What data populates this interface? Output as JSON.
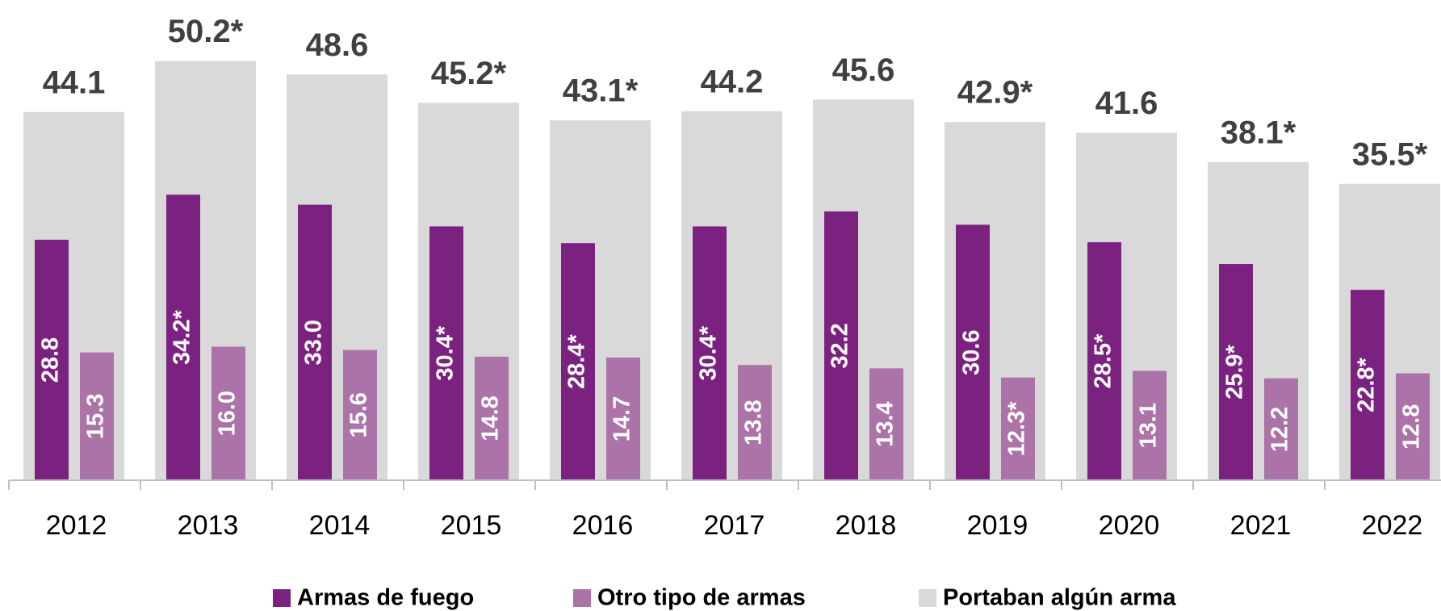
{
  "chart_data": {
    "type": "bar",
    "categories": [
      "2012",
      "2013",
      "2014",
      "2015",
      "2016",
      "2017",
      "2018",
      "2019",
      "2020",
      "2021",
      "2022"
    ],
    "ylim": [
      0,
      55
    ],
    "series": [
      {
        "name": "Armas de fuego",
        "color": "#7b2281",
        "values": [
          28.8,
          34.2,
          33.0,
          30.4,
          28.4,
          30.4,
          32.2,
          30.6,
          28.5,
          25.9,
          22.8
        ],
        "value_labels": [
          "28.8",
          "34.2*",
          "33.0",
          "30.4*",
          "28.4*",
          "30.4*",
          "32.2",
          "30.6",
          "28.5*",
          "25.9*",
          "22.8*"
        ]
      },
      {
        "name": "Otro tipo de armas",
        "color": "#ab73a7",
        "values": [
          15.3,
          16.0,
          15.6,
          14.8,
          14.7,
          13.8,
          13.4,
          12.3,
          13.1,
          12.2,
          12.8
        ],
        "value_labels": [
          "15.3",
          "16.0",
          "15.6",
          "14.8",
          "14.7",
          "13.8",
          "13.4",
          "12.3*",
          "13.1",
          "12.2",
          "12.8"
        ]
      },
      {
        "name": "Portaban algún arma",
        "color": "#d9d9d9",
        "values": [
          44.1,
          50.2,
          48.6,
          45.2,
          43.1,
          44.2,
          45.6,
          42.9,
          41.6,
          38.1,
          35.5
        ],
        "value_labels": [
          "44.1",
          "50.2*",
          "48.6",
          "45.2*",
          "43.1*",
          "44.2",
          "45.6",
          "42.9*",
          "41.6",
          "38.1*",
          "35.5*"
        ]
      }
    ]
  }
}
